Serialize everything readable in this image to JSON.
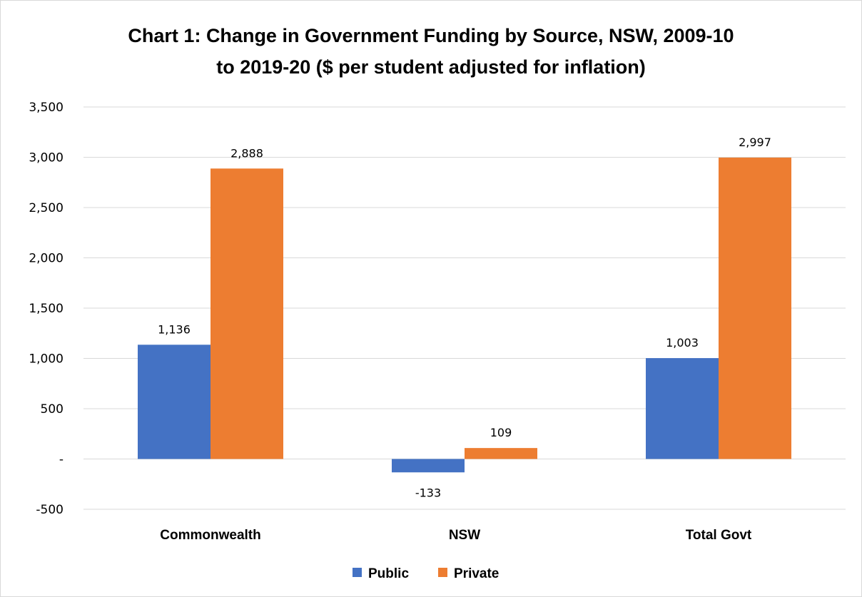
{
  "chart_data": {
    "type": "bar",
    "title": "Chart 1: Change in Government Funding by Source, NSW, 2009-10 to 2019-20 ($ per student adjusted for inflation)",
    "title_lines": [
      "Chart 1: Change in Government Funding by Source, NSW, 2009-10",
      "to 2019-20 ($ per student adjusted for inflation)"
    ],
    "categories": [
      "Commonwealth",
      "NSW",
      "Total Govt"
    ],
    "series": [
      {
        "name": "Public",
        "color": "#4472c4",
        "values": [
          1136,
          -133,
          1003
        ],
        "labels": [
          "1,136",
          "-133",
          "1,003"
        ]
      },
      {
        "name": "Private",
        "color": "#ed7d31",
        "values": [
          2888,
          109,
          2997
        ],
        "labels": [
          "2,888",
          "109",
          "2,997"
        ]
      }
    ],
    "ylim": [
      -500,
      3500
    ],
    "yticks": [
      -500,
      0,
      500,
      1000,
      1500,
      2000,
      2500,
      3000,
      3500
    ],
    "ytick_labels": [
      "-500",
      "-",
      "500",
      "1,000",
      "1,500",
      "2,000",
      "2,500",
      "3,000",
      "3,500"
    ],
    "xlabel": "",
    "ylabel": "",
    "grid": true,
    "legend_position": "bottom"
  }
}
